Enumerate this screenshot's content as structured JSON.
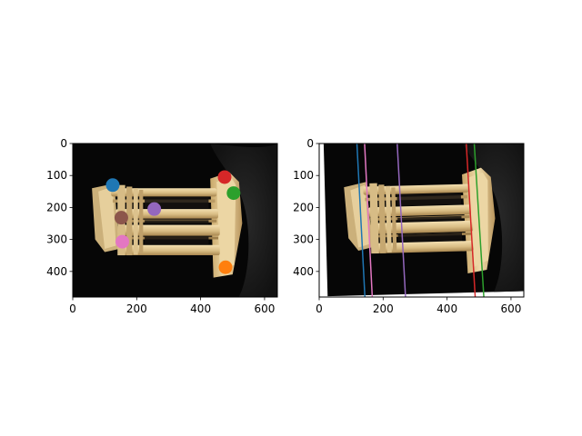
{
  "chart_data": [
    {
      "type": "scatter",
      "title": "",
      "xlabel": "",
      "ylabel": "",
      "xlim": [
        0,
        640
      ],
      "ylim": [
        480,
        0
      ],
      "y_inverted": true,
      "x_ticks": [
        0,
        200,
        400,
        600
      ],
      "y_ticks": [
        0,
        100,
        200,
        300,
        400
      ],
      "background": "photo: temple model (image 1)",
      "points": [
        {
          "x": 125,
          "y": 130,
          "color": "#1f77b4"
        },
        {
          "x": 478,
          "y": 387,
          "color": "#ff7f0e"
        },
        {
          "x": 503,
          "y": 155,
          "color": "#2ca02c"
        },
        {
          "x": 475,
          "y": 105,
          "color": "#d62728"
        },
        {
          "x": 255,
          "y": 205,
          "color": "#9467bd"
        },
        {
          "x": 152,
          "y": 232,
          "color": "#8c564b"
        },
        {
          "x": 155,
          "y": 307,
          "color": "#e377c2"
        }
      ]
    },
    {
      "type": "line",
      "title": "",
      "xlabel": "",
      "ylabel": "",
      "xlim": [
        0,
        640
      ],
      "ylim": [
        480,
        0
      ],
      "y_inverted": true,
      "x_ticks": [
        0,
        200,
        400,
        600
      ],
      "y_ticks": [
        0,
        100,
        200,
        300,
        400
      ],
      "background": "photo: temple model (image 2)",
      "series": [
        {
          "color": "#1f77b4",
          "x": [
            118,
            143
          ],
          "y": [
            0,
            480
          ]
        },
        {
          "color": "#e377c2",
          "x": [
            142,
            166
          ],
          "y": [
            0,
            480
          ]
        },
        {
          "color": "#9467bd",
          "x": [
            244,
            270
          ],
          "y": [
            0,
            480
          ]
        },
        {
          "color": "#d62728",
          "x": [
            460,
            488
          ],
          "y": [
            0,
            480
          ]
        },
        {
          "color": "#2ca02c",
          "x": [
            485,
            515
          ],
          "y": [
            0,
            480
          ]
        }
      ]
    }
  ]
}
